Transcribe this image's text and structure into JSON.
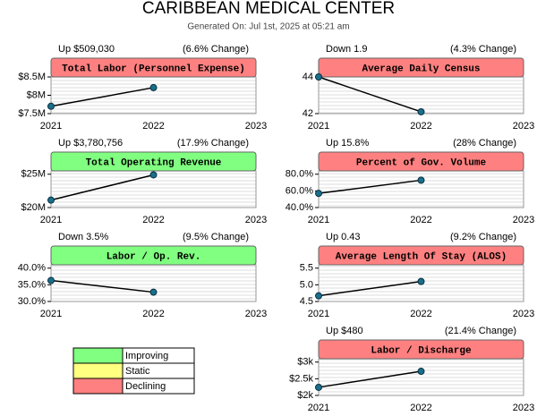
{
  "title": "CARIBBEAN MEDICAL CENTER",
  "subtitle": "Generated On: Jul 1st, 2025 at 05:21 am",
  "legend": [
    {
      "label": "Improving",
      "color": "#80ff80"
    },
    {
      "label": "Static",
      "color": "#ffff80"
    },
    {
      "label": "Declining",
      "color": "#ff8080"
    }
  ],
  "chart_data": [
    {
      "type": "line",
      "title": "Total Labor (Personnel Expense)",
      "summary": "Up $509,030",
      "change": "(6.6% Change)",
      "header_color": "#ff8080",
      "categories": [
        "2021",
        "2022",
        "2023"
      ],
      "values": [
        7700000,
        8209030,
        null
      ],
      "ylim": [
        7500000,
        8500000
      ],
      "yticks": [
        {
          "value": 7500000,
          "label": "$7.5M"
        },
        {
          "value": 8000000,
          "label": "$8M"
        },
        {
          "value": 8500000,
          "label": "$8.5M"
        }
      ]
    },
    {
      "type": "line",
      "title": "Average Daily Census",
      "summary": "Down 1.9",
      "change": "(4.3% Change)",
      "header_color": "#ff8080",
      "categories": [
        "2021",
        "2022",
        "2023"
      ],
      "values": [
        44.0,
        42.1,
        null
      ],
      "ylim": [
        42,
        44
      ],
      "yticks": [
        42,
        44
      ]
    },
    {
      "type": "line",
      "title": "Total Operating Revenue",
      "summary": "Up $3,780,756",
      "change": "(17.9% Change)",
      "header_color": "#80ff80",
      "categories": [
        "2021",
        "2022",
        "2023"
      ],
      "values": [
        21120000,
        24900756,
        null
      ],
      "ylim": [
        20000000,
        25500000
      ],
      "yticks": [
        {
          "value": 20000000,
          "label": "$20M"
        },
        {
          "value": 25000000,
          "label": "$25M"
        }
      ]
    },
    {
      "type": "line",
      "title": "Percent of Gov. Volume",
      "summary": "Up 15.8%",
      "change": "(28% Change)",
      "header_color": "#ff8080",
      "categories": [
        "2021",
        "2022",
        "2023"
      ],
      "values": [
        57.0,
        72.8,
        null
      ],
      "ylim": [
        40,
        84
      ],
      "yticks": [
        {
          "value": 40,
          "label": "40.0%"
        },
        {
          "value": 60,
          "label": "60.0%"
        },
        {
          "value": 80,
          "label": "80.0%"
        }
      ]
    },
    {
      "type": "line",
      "title": "Labor / Op. Rev.",
      "summary": "Down 3.5%",
      "change": "(9.5% Change)",
      "header_color": "#80ff80",
      "categories": [
        "2021",
        "2022",
        "2023"
      ],
      "values": [
        36.3,
        32.8,
        null
      ],
      "ylim": [
        30,
        41
      ],
      "yticks": [
        {
          "value": 30,
          "label": "30.0%"
        },
        {
          "value": 35,
          "label": "35.0%"
        },
        {
          "value": 40,
          "label": "40.0%"
        }
      ]
    },
    {
      "type": "line",
      "title": "Average Length Of Stay (ALOS)",
      "summary": "Up 0.43",
      "change": "(9.2% Change)",
      "header_color": "#ff8080",
      "categories": [
        "2021",
        "2022",
        "2023"
      ],
      "values": [
        4.67,
        5.1,
        null
      ],
      "ylim": [
        4.5,
        5.6
      ],
      "yticks": [
        4.5,
        {
          "value": 5,
          "label": "5.0"
        },
        5.5
      ]
    },
    {
      "type": "line",
      "title": "Labor / Discharge",
      "summary": "Up $480",
      "change": "(21.4% Change)",
      "header_color": "#ff8080",
      "categories": [
        "2021",
        "2022",
        "2023"
      ],
      "values": [
        2243,
        2723,
        null
      ],
      "ylim": [
        2000,
        3100
      ],
      "yticks": [
        {
          "value": 2000,
          "label": "$2k"
        },
        {
          "value": 2500,
          "label": "$2.5k"
        },
        {
          "value": 3000,
          "label": "$3k"
        }
      ]
    }
  ]
}
